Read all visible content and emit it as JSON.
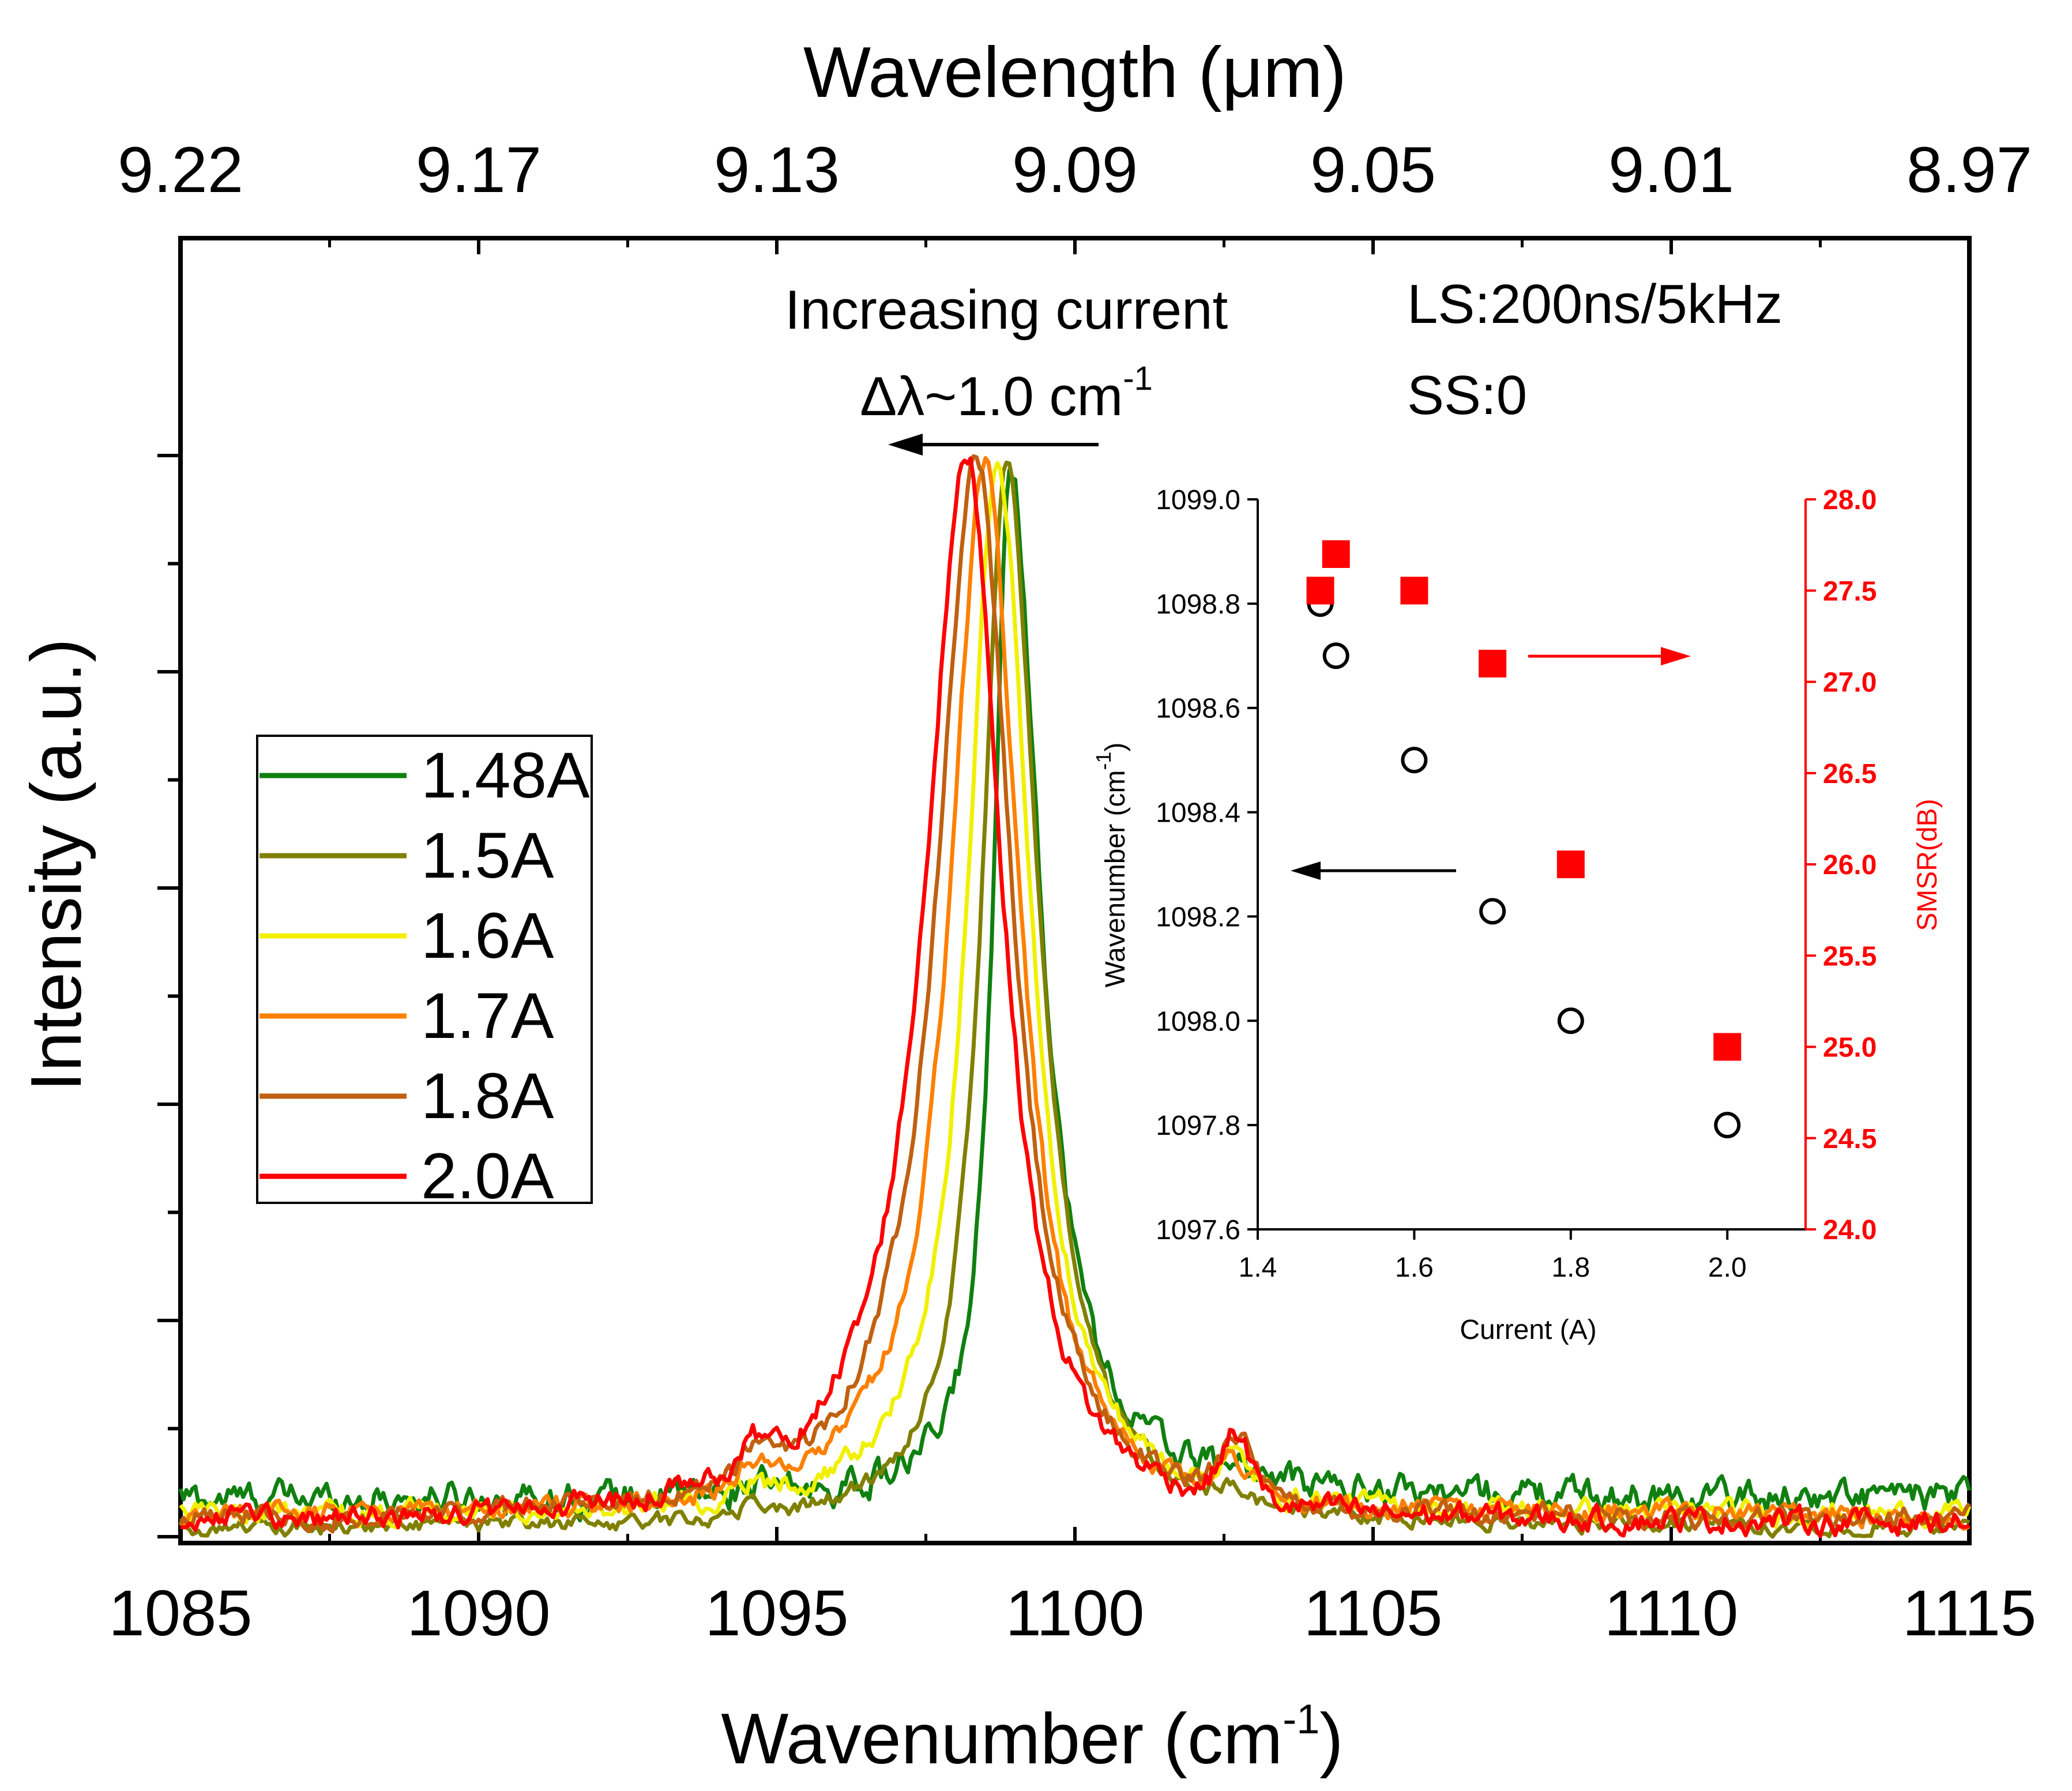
{
  "chart_data": {
    "type": "line",
    "title": "",
    "xlabel_bottom_prefix": "Wavenumber (cm",
    "xlabel_bottom_exp": "-1",
    "xlabel_bottom_suffix": ")",
    "xlabel_top": "Wavelength (μm)",
    "ylabel": "Intensity (a.u.)",
    "xlim": [
      1085,
      1115
    ],
    "ylim": [
      0,
      1.0
    ],
    "x_ticks": [
      "1085",
      "1090",
      "1095",
      "1100",
      "1105",
      "1110",
      "1115"
    ],
    "x_tick_values": [
      1085,
      1090,
      1095,
      1100,
      1105,
      1110,
      1115
    ],
    "top_ticks": [
      "9.22",
      "9.17",
      "9.13",
      "9.09",
      "9.05",
      "9.01",
      "8.97"
    ],
    "legend_placement": "center-left",
    "series": [
      {
        "name": "1.48A",
        "color": "#108010",
        "peak": 1098.9,
        "width_left": 0.32,
        "width_right": 0.62,
        "baseline": 0.035,
        "noise": 0.012
      },
      {
        "name": "1.5A",
        "color": "#808000",
        "peak": 1098.85,
        "width_left": 0.5,
        "width_right": 0.65,
        "baseline": 0.008,
        "noise": 0.006
      },
      {
        "name": "1.6A",
        "color": "#f0f000",
        "peak": 1098.7,
        "width_left": 0.6,
        "width_right": 0.66,
        "baseline": 0.02,
        "noise": 0.008
      },
      {
        "name": "1.7A",
        "color": "#ff8000",
        "peak": 1098.5,
        "width_left": 0.72,
        "width_right": 0.68,
        "baseline": 0.018,
        "noise": 0.008
      },
      {
        "name": "1.8A",
        "color": "#c06010",
        "peak": 1098.35,
        "width_left": 0.82,
        "width_right": 0.72,
        "baseline": 0.015,
        "noise": 0.008
      },
      {
        "name": "2.0A",
        "color": "#ff0000",
        "peak": 1098.2,
        "width_left": 0.88,
        "width_right": 0.72,
        "baseline": 0.012,
        "noise": 0.009
      }
    ],
    "annotations": {
      "increasing": "Increasing current",
      "delta_prefix": "Δλ~1.0 cm",
      "delta_exp": "-1",
      "ls": "LS:200ns/5kHz",
      "ss": "SS:0"
    },
    "inset": {
      "type": "scatter",
      "xlabel": "Current (A)",
      "ylabel_left_prefix": "Wavenumber (cm",
      "ylabel_left_exp": "-1",
      "ylabel_left_suffix": ")",
      "ylabel_right": "SMSR(dB)",
      "xlim": [
        1.4,
        2.1
      ],
      "ylim_left": [
        1097.6,
        1099.0
      ],
      "ylim_right": [
        24.0,
        28.0
      ],
      "x_ticks": [
        "1.4",
        "1.6",
        "1.8",
        "2.0"
      ],
      "x_tick_values": [
        1.4,
        1.6,
        1.8,
        2.0
      ],
      "y_left_ticks": [
        "1097.6",
        "1097.8",
        "1098.0",
        "1098.2",
        "1098.4",
        "1098.6",
        "1098.8",
        "1099.0"
      ],
      "y_left_tick_values": [
        1097.6,
        1097.8,
        1098.0,
        1098.2,
        1098.4,
        1098.6,
        1098.8,
        1099.0
      ],
      "y_right_ticks": [
        "24.0",
        "24.5",
        "25.0",
        "25.5",
        "26.0",
        "26.5",
        "27.0",
        "27.5",
        "28.0"
      ],
      "y_right_tick_values": [
        24.0,
        24.5,
        25.0,
        25.5,
        26.0,
        26.5,
        27.0,
        27.5,
        28.0
      ],
      "wavenumber_series": {
        "name": "Wavenumber",
        "color": "#000000",
        "x": [
          1.48,
          1.5,
          1.6,
          1.7,
          1.8,
          2.0
        ],
        "y": [
          1098.8,
          1098.7,
          1098.5,
          1098.21,
          1098.0,
          1097.8
        ]
      },
      "smsr_series": {
        "name": "SMSR",
        "color": "#ff0000",
        "x": [
          1.48,
          1.5,
          1.6,
          1.7,
          1.8,
          2.0
        ],
        "y": [
          27.5,
          27.7,
          27.5,
          27.1,
          26.0,
          25.0
        ]
      }
    }
  }
}
